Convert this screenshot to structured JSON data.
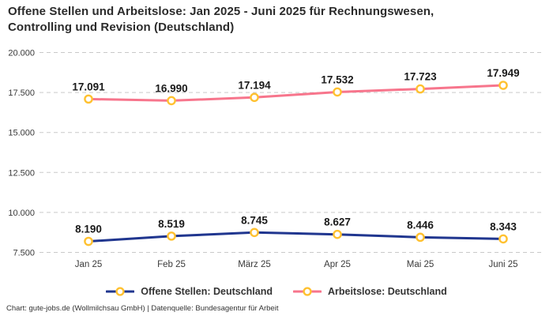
{
  "header": {
    "title_line1": "Offene Stellen und Arbeitslose: Jan 2025 - Juni 2025 für Rechnungswesen,",
    "title_line2": "Controlling und Revision (Deutschland)"
  },
  "footer": {
    "credit": "Chart: gute-jobs.de (Wollmilchsau GmbH) | Datenquelle: Bundesagentur für Arbeit"
  },
  "chart_data": {
    "type": "line",
    "title": "Offene Stellen und Arbeitslose: Jan 2025 - Juni 2025 für Rechnungswesen, Controlling und Revision (Deutschland)",
    "categories": [
      "Jan 25",
      "Feb 25",
      "März 25",
      "Apr 25",
      "Mai 25",
      "Juni 25"
    ],
    "series": [
      {
        "name": "Offene Stellen: Deutschland",
        "color": "#20368f",
        "values": [
          8190,
          8519,
          8745,
          8627,
          8446,
          8343
        ],
        "labels": [
          "8.190",
          "8.519",
          "8.745",
          "8.627",
          "8.446",
          "8.343"
        ]
      },
      {
        "name": "Arbeitslose: Deutschland",
        "color": "#f7758c",
        "values": [
          17091,
          16990,
          17194,
          17532,
          17723,
          17949
        ],
        "labels": [
          "17.091",
          "16.990",
          "17.194",
          "17.532",
          "17.723",
          "17.949"
        ]
      }
    ],
    "y_axis": {
      "min": 7500,
      "max": 20000,
      "ticks": [
        20000,
        17500,
        15000,
        12500,
        10000,
        7500
      ],
      "tick_labels": [
        "20.000",
        "17.500",
        "15.000",
        "12.500",
        "10.000",
        "7.500"
      ]
    },
    "marker_color": "#ffc130",
    "marker_fill": "#ffffff",
    "grid_color": "#c9c9c9",
    "grid_style": "dashed-horizontal",
    "label_color": "#1a1a1a",
    "axis_text_color": "#3a3a3a",
    "legend_position": "bottom"
  }
}
